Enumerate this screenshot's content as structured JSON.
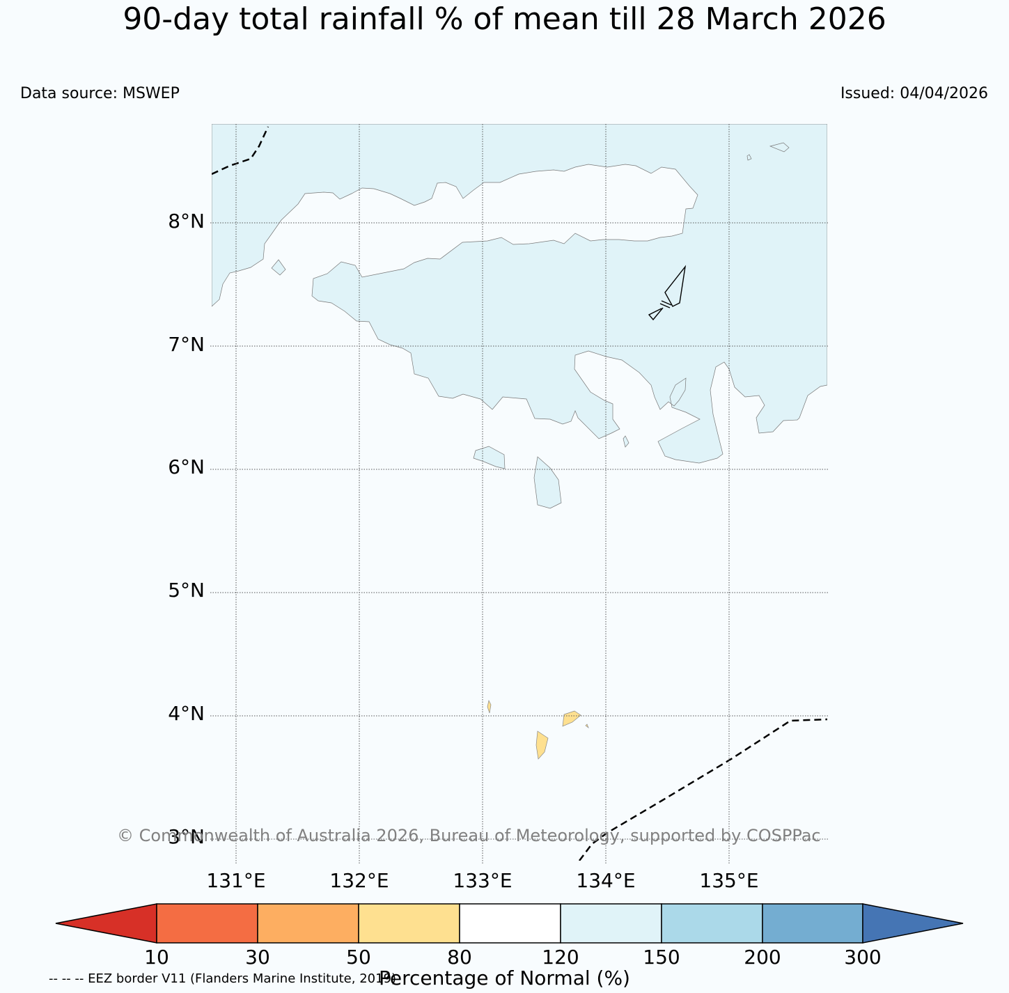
{
  "title": "90-day total rainfall % of mean till 28 March 2026",
  "data_source": "Data source: MSWEP",
  "issued": "Issued: 04/04/2026",
  "lat_labels": [
    "8°N",
    "7°N",
    "6°N",
    "5°N",
    "4°N",
    "3°N"
  ],
  "lon_labels": [
    "131°E",
    "132°E",
    "133°E",
    "134°E",
    "135°E"
  ],
  "copyright": "© Commonwealth of Australia 2026, Bureau of Meteorology, supported by COSPPac",
  "colorbar": {
    "label": "Percentage of Normal (%)",
    "ticks": [
      "10",
      "30",
      "50",
      "80",
      "120",
      "150",
      "200",
      "300"
    ],
    "colors": [
      "#d73027",
      "#f46d43",
      "#fdae61",
      "#fee090",
      "#ffffff",
      "#e0f3f8",
      "#abd9e9",
      "#74add1",
      "#4575b4"
    ]
  },
  "legend_note": "-- -- -- EEZ border V11 (Flanders Marine Institute, 2019)"
}
